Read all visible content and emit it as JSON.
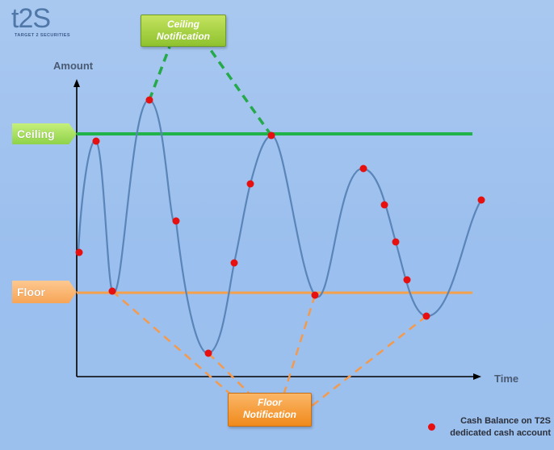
{
  "logo": {
    "mark": "t2S",
    "tagline": "TARGET 2 SECURITIES"
  },
  "axes": {
    "y_label": "Amount",
    "x_label": "Time"
  },
  "thresholds": {
    "ceiling_label": "Ceiling",
    "floor_label": "Floor"
  },
  "callouts": {
    "ceiling_title_1": "Ceiling",
    "ceiling_title_2": "Notification",
    "floor_title_1": "Floor",
    "floor_title_2": "Notification"
  },
  "legend": {
    "line1": "Cash Balance on T2S",
    "line2": "dedicated cash account"
  },
  "colors": {
    "ceiling": "#1fb34a",
    "floor": "#f5a04b",
    "curve": "#5a85b8",
    "dot": "#e5100f",
    "ceiling_dash": "#25a94a",
    "floor_dash": "#f49a4d"
  }
}
